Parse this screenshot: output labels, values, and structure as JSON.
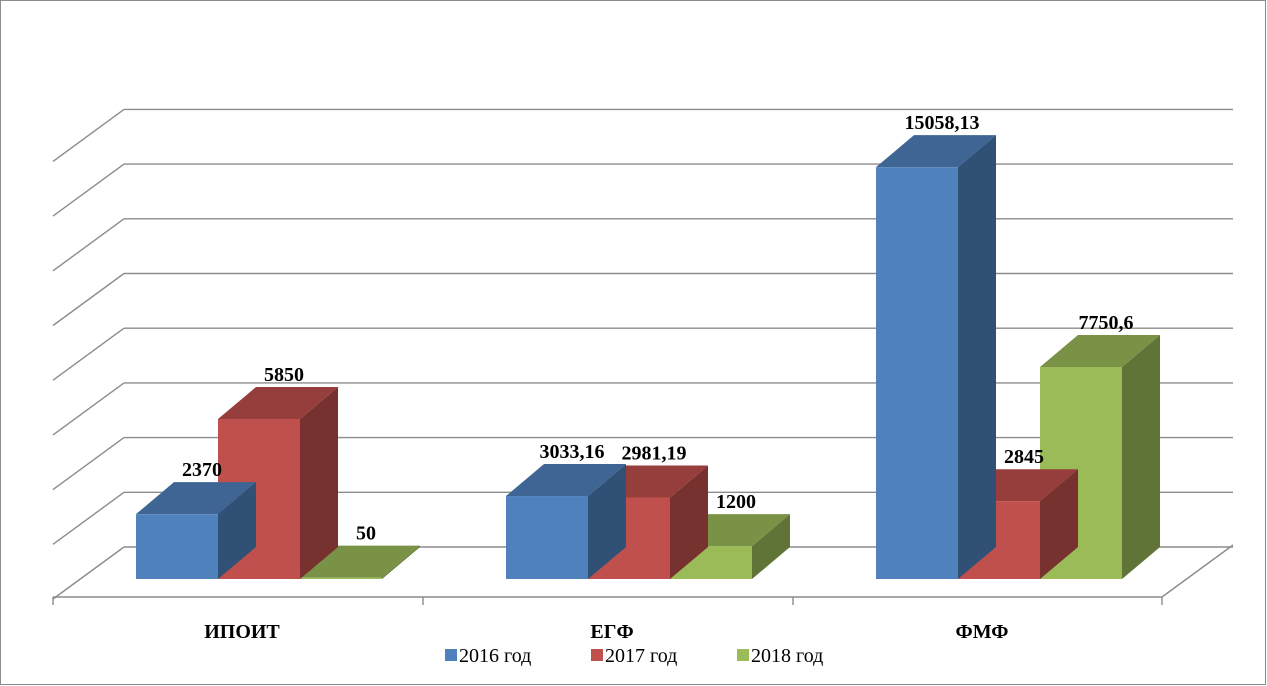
{
  "chart_data": {
    "type": "bar",
    "subtype": "3d-clustered-column",
    "categories": [
      "ИПОИТ",
      "ЕГФ",
      "ФМФ"
    ],
    "series": [
      {
        "name": "2016 год",
        "values": [
          2370,
          3033.16,
          15058.13
        ],
        "labels": [
          "2370",
          "3033,16",
          "15058,13"
        ],
        "color": "#4F81BD"
      },
      {
        "name": "2017 год",
        "values": [
          5850,
          2981.19,
          2845
        ],
        "labels": [
          "5850",
          "2981,19",
          "2845"
        ],
        "color": "#C0504D"
      },
      {
        "name": "2018 год",
        "values": [
          50,
          1200,
          7750.6
        ],
        "labels": [
          "50",
          "1200",
          "7750,6"
        ],
        "color": "#9BBB59"
      }
    ],
    "ylim": [
      0,
      16000
    ],
    "y_axis_visible": false,
    "grid": true,
    "legend": "bottom"
  }
}
